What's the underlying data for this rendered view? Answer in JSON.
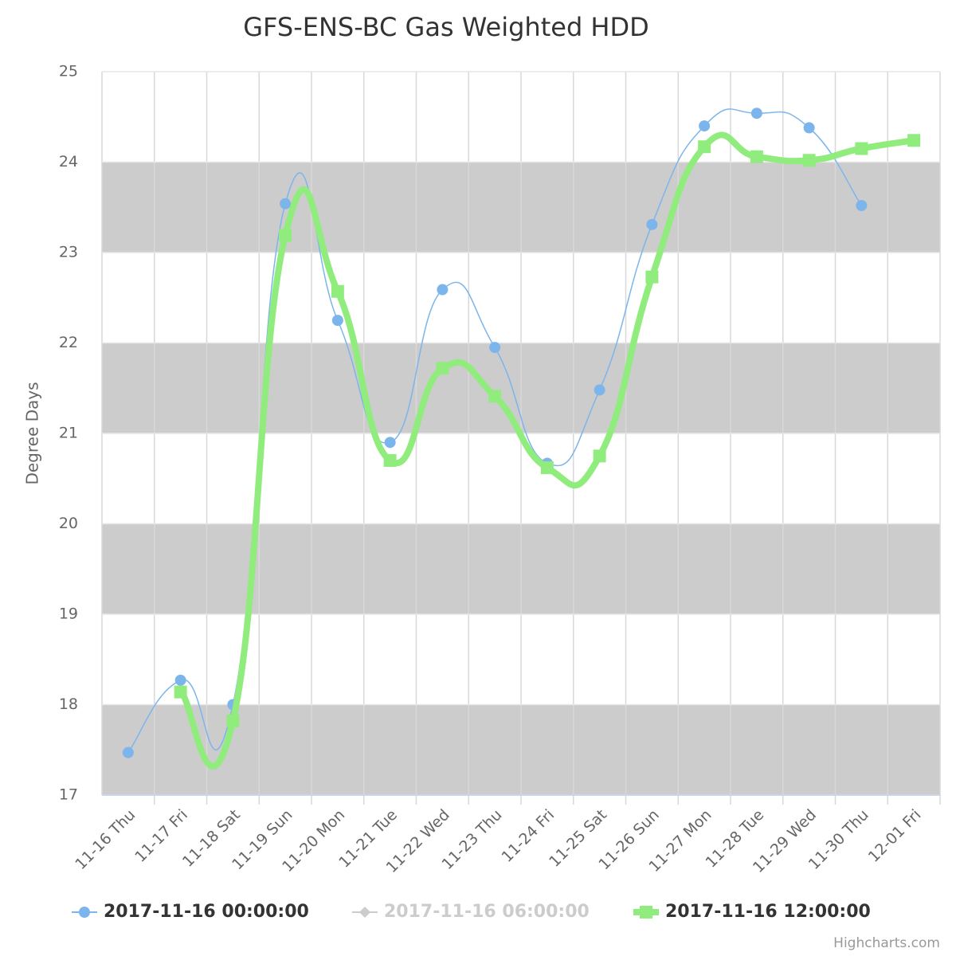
{
  "chart_data": {
    "type": "spline",
    "title": "GFS-ENS-BC Gas Weighted HDD",
    "y_label": "Degree Days",
    "credits": "Highcharts.com",
    "categories": [
      "11-16 Thu",
      "11-17 Fri",
      "11-18 Sat",
      "11-19 Sun",
      "11-20 Mon",
      "11-21 Tue",
      "11-22 Wed",
      "11-23 Thu",
      "11-24 Fri",
      "11-25 Sat",
      "11-26 Sun",
      "11-27 Mon",
      "11-28 Tue",
      "11-29 Wed",
      "11-30 Thu",
      "12-01 Fri"
    ],
    "series": [
      {
        "name": "2017-11-16 00:00:00",
        "color": "#7cb5ec",
        "marker": "circle",
        "visible": true,
        "values": [
          17.47,
          18.27,
          18.0,
          23.54,
          22.25,
          20.9,
          22.59,
          21.95,
          20.67,
          21.48,
          23.31,
          24.4,
          24.54,
          24.38,
          23.52,
          null
        ]
      },
      {
        "name": "2017-11-16 06:00:00",
        "color": "#cccccc",
        "marker": "diamond",
        "visible": false,
        "values": [
          null,
          null,
          null,
          null,
          null,
          null,
          null,
          null,
          null,
          null,
          null,
          null,
          null,
          null,
          null,
          null
        ]
      },
      {
        "name": "2017-11-16 12:00:00",
        "color": "#90ed7d",
        "marker": "square",
        "visible": true,
        "values": [
          null,
          18.14,
          17.82,
          23.19,
          22.57,
          20.7,
          21.72,
          21.41,
          20.62,
          20.75,
          22.73,
          24.17,
          24.06,
          24.02,
          24.15,
          24.24
        ]
      }
    ],
    "ylim": [
      17,
      25
    ],
    "yticks": [
      17,
      18,
      19,
      20,
      21,
      22,
      23,
      24,
      25
    ],
    "alternate_bands": true,
    "grid": true
  }
}
